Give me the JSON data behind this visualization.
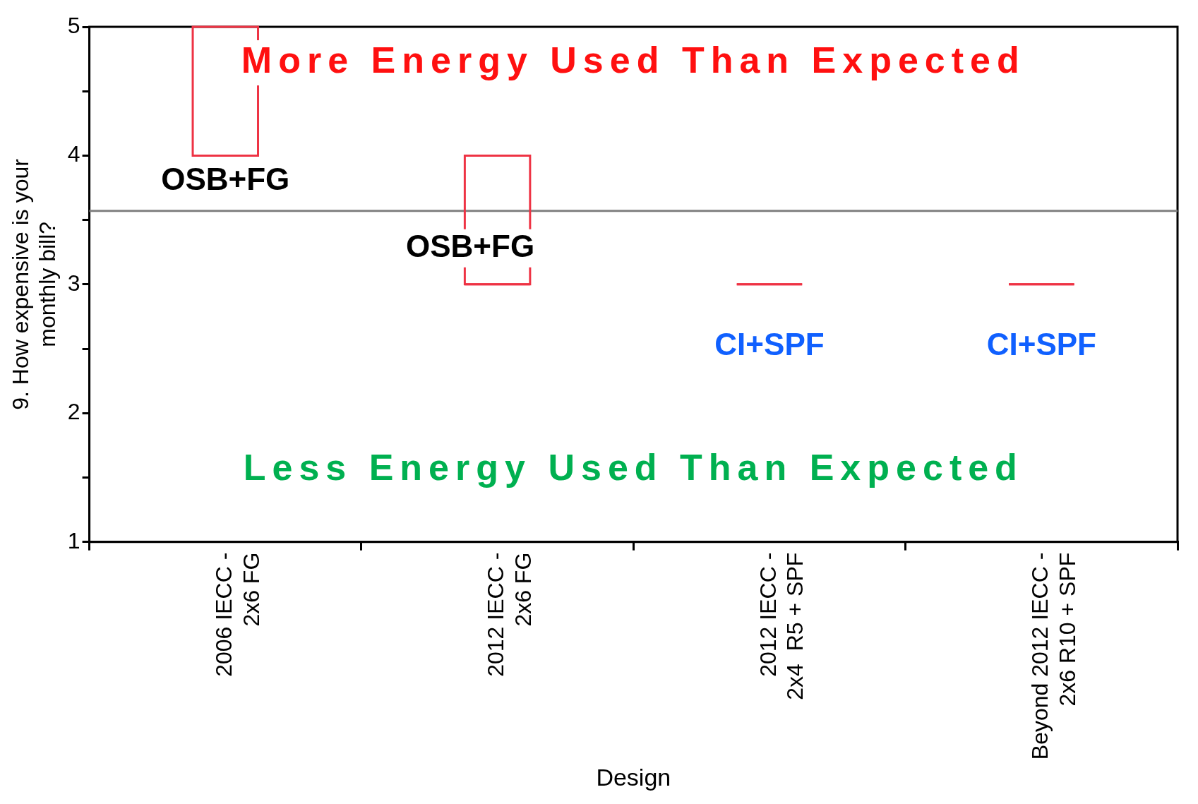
{
  "chart_data": {
    "type": "box",
    "xlabel": "Design",
    "ylabel": "9. How expensive is your\nmonthly bill?",
    "categories": [
      "2006 IECC -\n2x6 FG",
      "2012 IECC -\n2x6 FG",
      "2012 IECC -\n2x4  R5 + SPF",
      "Beyond 2012 IECC -\n2x6 R10 + SPF"
    ],
    "boxes": [
      {
        "low": 4,
        "q1": 4,
        "median": 4,
        "q3": 5,
        "high": 5
      },
      {
        "low": 3,
        "q1": 3,
        "median": 3,
        "q3": 4,
        "high": 4
      },
      {
        "low": 3,
        "q1": 3,
        "median": 3,
        "q3": 3,
        "high": 3
      },
      {
        "low": 3,
        "q1": 3,
        "median": 3,
        "q3": 3,
        "high": 3
      }
    ],
    "color": "#ee3344",
    "ylim": [
      1,
      5
    ],
    "yticks": [
      1,
      {
        "value": 1.5,
        "label": null
      },
      2,
      {
        "value": 2.5,
        "label": null
      },
      3,
      {
        "value": 3.5,
        "label": null
      },
      4,
      {
        "value": 4.5,
        "label": null
      },
      5
    ],
    "ref_lines": [
      {
        "axis": "y",
        "value": 3.57,
        "color": "#808080"
      }
    ],
    "annotations": [
      "More Energy Used Than Expected",
      "Less Energy Used Than Expected",
      "OSB+FG",
      "OSB+FG",
      "CI+SPF",
      "CI+SPF"
    ]
  }
}
